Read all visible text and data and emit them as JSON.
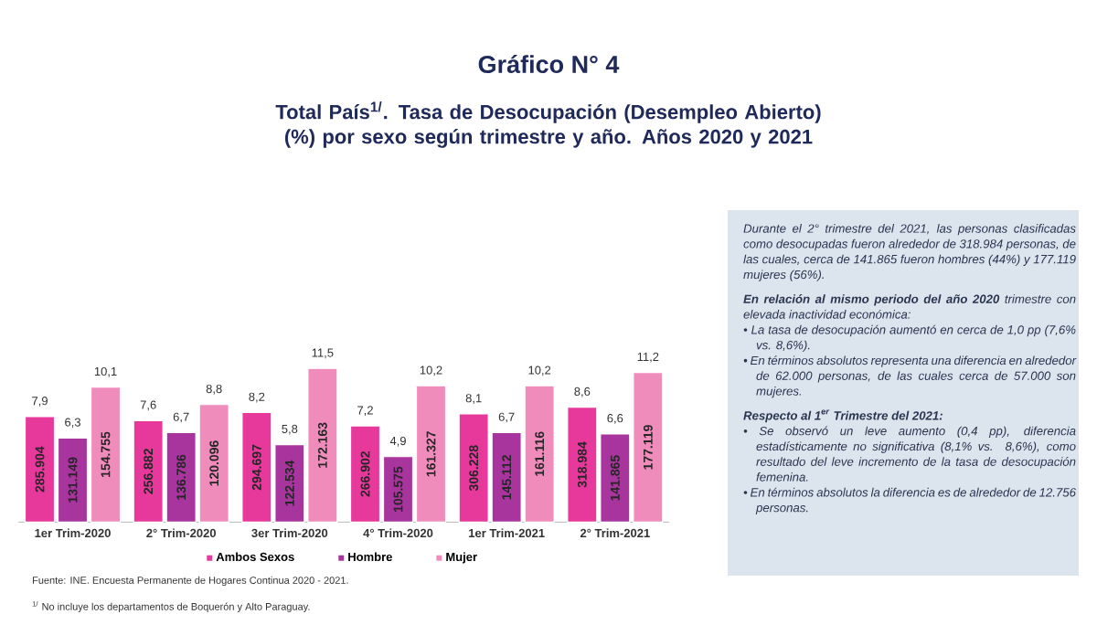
{
  "chart_data": {
    "type": "bar",
    "title": "Gráfico N° 4",
    "subtitle": "Total País$^{1/}$. Tasa de Desocupación (Desempleo Abierto) (%) por sexo según trimestre y año. Años 2020 y 2021",
    "categories": [
      "1er Trim-2020",
      "2° Trim-2020",
      "3er Trim-2020",
      "4° Trim-2020",
      "1er Trim-2021",
      "2° Trim-2021"
    ],
    "series": [
      {
        "name": "Ambos Sexos",
        "color": "#e6399b",
        "values": [
          7.9,
          7.6,
          8.2,
          7.2,
          8.1,
          8.6
        ],
        "value_labels": [
          "7,9",
          "7,6",
          "8,2",
          "7,2",
          "8,1",
          "8,6"
        ]
      },
      {
        "name": "Hombre",
        "color": "#a8359e",
        "values": [
          6.3,
          6.7,
          5.8,
          4.9,
          6.7,
          6.6
        ],
        "value_labels": [
          "6,3",
          "6,7",
          "5,8",
          "4,9",
          "6,7",
          "6,6"
        ]
      },
      {
        "name": "Mujer",
        "color": "#f08cbc",
        "values": [
          10.1,
          8.8,
          11.5,
          10.2,
          10.2,
          11.2
        ],
        "value_labels": [
          "10,1",
          "8,8",
          "11,5",
          "10,2",
          "10,2",
          "11,2"
        ]
      }
    ],
    "legend": "bottom",
    "annotations": [
      "Durante el 2° trimestre del 2021, las personas clasificadas como desocupadas fueron alrededor de 318.984 personas, de las cuales, cerca de 141.865 fueron hombres (44%) y 177.119 mujeres (56%).",
      "**En relación al mismo periodo del año 2020** trimestre con elevada inactividad económica:",
      "• La tasa de desocupación aumentó en cerca de 1,0 pp (7,6% vs. 8,6%).",
      "• En términos absolutos representa una diferencia en alrededor de 62.000 personas, de las cuales cerca de 57.000 son mujeres.",
      "Respecto al 1$^{er}$ Trimestre del 2021:",
      "• Se observó un leve aumento (0,4 pp), diferencia estadísticamente no significativa (8,1% vs. 8,6%), como resultado del leve incremento de la tasa de desocupación femenina.",
      "• En términos absolutos la diferencia es de alrededor de 12.756 personas.",
      "Fuente: INE. Encuesta Permanente de Hogares Continua 2020 - 2021.",
      "$^{1/}$ No incluye los departamentos de Boquerón y Alto Paraguay.",
      "285.904",
      "131.149",
      "154.755",
      "256.882",
      "136.786",
      "120.096",
      "294.697",
      "122.534",
      "172.163",
      "266.902",
      "105.575",
      "161.327",
      "306.228",
      "145.112",
      "161.116",
      "318.984",
      "141.865",
      "177.119"
    ]
  }
}
